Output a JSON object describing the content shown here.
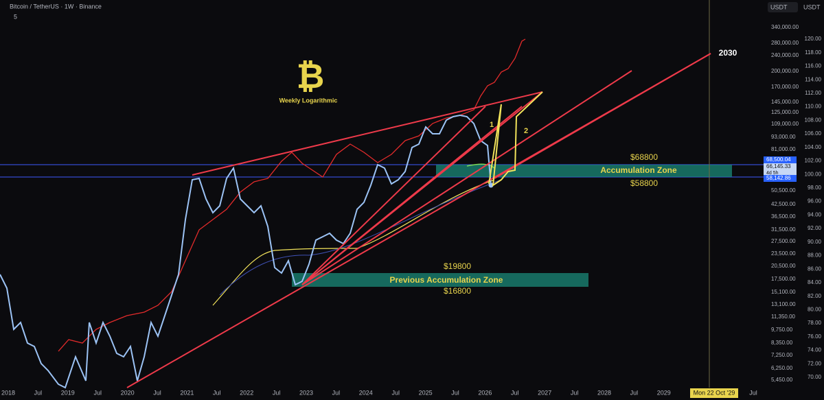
{
  "header": {
    "title": "Bitcoin / TetherUS · 1W · Binance",
    "indicator_count": "5"
  },
  "currency": [
    "USDT",
    "USDT"
  ],
  "chart": {
    "logo": "₿",
    "title": "Weekly Logarithmic",
    "labels": {
      "year": "2030",
      "wave_1": "1",
      "wave_2": "2",
      "zone_top": "$68800",
      "zone": "Accumulation Zone",
      "zone_bottom": "$58800",
      "prev_top": "$19800",
      "prev_zone": "Previous Accumulation Zone",
      "prev_bottom": "$16800"
    }
  },
  "price_axis": [
    "340,000.00",
    "280,000.00",
    "240,000.00",
    "200,000.00",
    "170,000.00",
    "145,000.00",
    "125,000.00",
    "109,000.00",
    "93,000.00",
    "81,000.00",
    "50,500.00",
    "42,500.00",
    "36,500.00",
    "31,500.00",
    "27,500.00",
    "23,500.00",
    "20,500.00",
    "17,500.00",
    "15,100.00",
    "13,100.00",
    "11,350.00",
    "9,750.00",
    "8,350.00",
    "7,250.00",
    "6,250.00",
    "5,450.00"
  ],
  "price_badges": [
    "68,500.04",
    "66,145.33",
    "4d 5h",
    "58,142.86"
  ],
  "right_scale": [
    "120.00",
    "118.00",
    "116.00",
    "114.00",
    "112.00",
    "110.00",
    "108.00",
    "106.00",
    "104.00",
    "102.00",
    "100.00",
    "98.00",
    "96.00",
    "94.00",
    "92.00",
    "90.00",
    "88.00",
    "86.00",
    "84.00",
    "82.00",
    "80.00",
    "78.00",
    "76.00",
    "74.00",
    "72.00",
    "70.00"
  ],
  "time_axis": [
    "2018",
    "Jul",
    "2019",
    "Jul",
    "2020",
    "Jul",
    "2021",
    "Jul",
    "2022",
    "Jul",
    "2023",
    "Jul",
    "2024",
    "Jul",
    "2025",
    "Jul",
    "2026",
    "Jul",
    "2027",
    "Jul",
    "2028",
    "Jul",
    "2029",
    "Jul"
  ],
  "crosshair_date": "Mon 22 Oct '29"
}
